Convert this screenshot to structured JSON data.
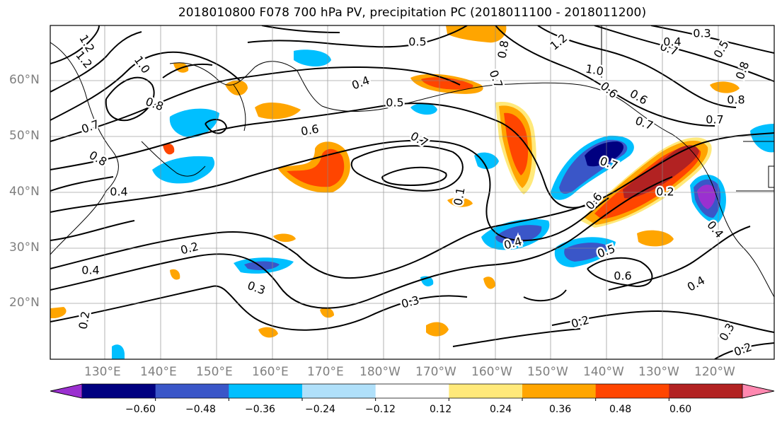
{
  "title": "2018010800 F078 700 hPa PV, precipitation PC (2018011100 - 2018011200)",
  "map": {
    "lat_labels": [
      "60°N",
      "50°N",
      "40°N",
      "30°N",
      "20°N"
    ],
    "lon_labels": [
      "130°E",
      "140°E",
      "150°E",
      "160°E",
      "170°E",
      "180°W",
      "170°W",
      "160°W",
      "150°W",
      "140°W",
      "130°W",
      "120°W"
    ],
    "contour_labels": [
      "1.2",
      "1.0",
      "1.2",
      "0.8",
      "0.7",
      "0.8",
      "0.4",
      "1.2",
      "0.7",
      "0.5",
      "0.4",
      "0.5",
      "0.6",
      "0.7",
      "0.8",
      "1.2",
      "0.7",
      "1.0",
      "0.6",
      "0.3",
      "0.4",
      "0.5",
      "0.6",
      "0.8",
      "0.7",
      "0.7",
      "0.6",
      "0.2",
      "0.4",
      "0.5",
      "0.6",
      "0.4",
      "0.2",
      "0.3",
      "0.3",
      "0.2",
      "0.2",
      "0.4",
      "0.3",
      "0.2",
      "0.1",
      "0.4",
      "0.8",
      "0.7"
    ]
  },
  "colorbar": {
    "ticks": [
      "−0.60",
      "−0.48",
      "−0.36",
      "−0.24",
      "−0.12",
      "0.12",
      "0.24",
      "0.36",
      "0.48",
      "0.60"
    ],
    "colors": [
      "#9b30d0",
      "#000080",
      "#3a56c8",
      "#00bfff",
      "#b0e0fa",
      "#ffffff",
      "#ffe97a",
      "#ffa500",
      "#ff4500",
      "#b22222",
      "#ff88b0"
    ]
  }
}
